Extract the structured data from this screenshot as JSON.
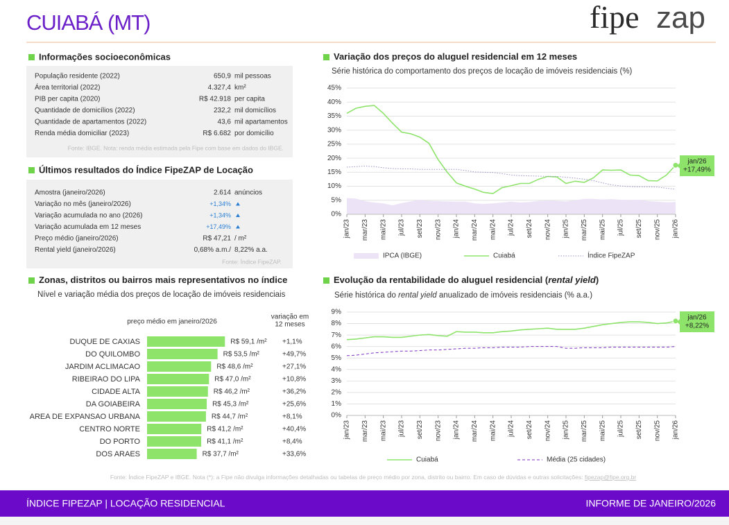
{
  "header": {
    "title": "CUIABÁ (MT)",
    "logo": [
      "fipe",
      "zap"
    ]
  },
  "socioeconomic": {
    "title": "Informações socioeconômicas",
    "rows": [
      [
        "População residente (2022)",
        "650,9",
        "mil pessoas"
      ],
      [
        "Área territorial (2022)",
        "4.327,4",
        "km²"
      ],
      [
        "PIB per capita (2020)",
        "R$ 42.918",
        "per capita"
      ],
      [
        "Quantidade de domicílios (2022)",
        "232,2",
        "mil domicílios"
      ],
      [
        "Quantidade de apartamentos (2022)",
        "43,6",
        "mil apartamentos"
      ],
      [
        "Renda média domiciliar (2023)",
        "R$ 6.682",
        "por domicílio"
      ]
    ],
    "source": "Fonte: IBGE. Nota: renda média estimada pela Fipe com base em dados do IBGE."
  },
  "index_results": {
    "title": "Últimos resultados do Índice FipeZAP de Locação",
    "rows": [
      [
        "Amostra (janeiro/2026)",
        "2.614",
        "anúncios"
      ],
      [
        "Variação no mês (janeiro/2026)",
        "+1,34%",
        ""
      ],
      [
        "Variação acumulada no ano (2026)",
        "+1,34%",
        ""
      ],
      [
        "Variação acumulada em 12 meses",
        "+17,49%",
        ""
      ],
      [
        "Preço médio (janeiro/2026)",
        "R$ 47,21",
        "/ m²"
      ],
      [
        "Rental yield (janeiro/2026)",
        "0,68% a.m./",
        "8,22% a.a."
      ]
    ],
    "source": "Fonte: Índice FipeZAP."
  },
  "chart_data": [
    {
      "type": "line",
      "title": [
        "Variação dos preços do aluguel residencial em 12 meses"
      ],
      "subtitle": [
        "Série histórica do comportamento dos preços de locação de imóveis residenciais (%)"
      ],
      "categories": [
        "jan/23",
        null,
        "mar/23",
        null,
        "mai/23",
        null,
        "jul/23",
        null,
        "set/23",
        null,
        "nov/23",
        null,
        "jan/24",
        null,
        "mar/24",
        null,
        "mai/24",
        null,
        "jul/24",
        null,
        "set/24",
        null,
        "nov/24",
        null,
        "jan/25",
        null,
        "mar/25",
        null,
        "mai/25",
        null,
        "jul/25",
        null,
        "set/25",
        null,
        "nov/25",
        null,
        "jan/26"
      ],
      "series": [
        {
          "name": "IPCA (IBGE)",
          "color": "#ece4f6",
          "kind": "area",
          "values": [
            5.8,
            5.6,
            4.7,
            4.2,
            3.9,
            3.2,
            4,
            4.6,
            5.2,
            4.8,
            4.7,
            4.6,
            4.5,
            4.5,
            3.9,
            3.7,
            3.9,
            4.2,
            4.5,
            4.2,
            4.4,
            4.8,
            4.9,
            4.8,
            4.6,
            5,
            5.5,
            5.5,
            5.3,
            5.4,
            5.2,
            5.1,
            5.2,
            4.7,
            4.5,
            4.3,
            4.4
          ]
        },
        {
          "name": "Cuiabá",
          "color": "#8ee36b",
          "kind": "line",
          "values": [
            36,
            37.8,
            38.5,
            38.8,
            36,
            32.5,
            29.3,
            28.7,
            27.5,
            25.3,
            19.5,
            15,
            11.2,
            10,
            9,
            7.8,
            7.4,
            9.5,
            10.2,
            11,
            11,
            12.5,
            13.5,
            13.3,
            11,
            11.8,
            11.4,
            13,
            15.8,
            15.7,
            15.8,
            14,
            13.8,
            12,
            11.9,
            14,
            17.49
          ]
        },
        {
          "name": "Índice FipeZAP",
          "color": "#9a92c4",
          "kind": "line",
          "dash": "dotted",
          "values": [
            16.8,
            17,
            17.2,
            17,
            16.6,
            16.3,
            16.2,
            16.2,
            16,
            16,
            16,
            16,
            16,
            15.6,
            15.1,
            15,
            14.9,
            14.5,
            14,
            13.8,
            13.7,
            13.6,
            13.5,
            13.5,
            13.2,
            12.9,
            12.5,
            12,
            11.2,
            10.5,
            10.1,
            9.9,
            9.8,
            9.8,
            9.7,
            9.3,
            9
          ]
        }
      ],
      "ylim": [
        0,
        45
      ],
      "yticks": [
        {
          "value": 0,
          "label": "0%"
        },
        {
          "value": 5,
          "label": "5%"
        },
        {
          "value": 10,
          "label": "10%"
        },
        {
          "value": 15,
          "label": "15%"
        },
        {
          "value": 20,
          "label": "20%"
        },
        {
          "value": 25,
          "label": "25%"
        },
        {
          "value": 30,
          "label": "30%"
        },
        {
          "value": 35,
          "label": "35%"
        },
        {
          "value": 40,
          "label": "40%"
        },
        {
          "value": 45,
          "label": "45%"
        }
      ],
      "grid": true,
      "annotation": [
        "jan/26",
        "+17,49%"
      ]
    },
    {
      "type": "line",
      "title": [
        "Evolução da rentabilidade do aluguel residencial (",
        "rental yield",
        ")"
      ],
      "subtitle": [
        "Série histórica do ",
        "rental yield",
        " anualizado de imóveis residenciais (% a.a.)"
      ],
      "categories": [
        "jan/23",
        null,
        "mar/23",
        null,
        "mai/23",
        null,
        "jul/23",
        null,
        "set/23",
        null,
        "nov/23",
        null,
        "jan/24",
        null,
        "mar/24",
        null,
        "mai/24",
        null,
        "jul/24",
        null,
        "set/24",
        null,
        "nov/24",
        null,
        "jan/25",
        null,
        "mar/25",
        null,
        "mai/25",
        null,
        "jul/25",
        null,
        "set/25",
        null,
        "nov/25",
        null,
        "jan/26"
      ],
      "series": [
        {
          "name": "Cuiabá",
          "color": "#8ee36b",
          "kind": "line",
          "values": [
            6.6,
            6.65,
            6.75,
            6.85,
            6.85,
            6.8,
            6.8,
            6.9,
            7,
            7.05,
            6.95,
            6.9,
            7.3,
            7.25,
            7.25,
            7.2,
            7.2,
            7.3,
            7.35,
            7.45,
            7.5,
            7.55,
            7.6,
            7.5,
            7.5,
            7.5,
            7.6,
            7.75,
            7.9,
            8,
            8.1,
            8.15,
            8.15,
            8.1,
            8,
            8.05,
            8.22
          ]
        },
        {
          "name": "Média (25 cidades)",
          "color": "#7b2fbf",
          "kind": "line",
          "dash": "dashed",
          "values": [
            5.2,
            5.25,
            5.35,
            5.45,
            5.5,
            5.55,
            5.6,
            5.6,
            5.65,
            5.7,
            5.7,
            5.75,
            5.8,
            5.85,
            5.85,
            5.9,
            5.9,
            5.95,
            5.95,
            5.95,
            6,
            6,
            6,
            6,
            5.85,
            5.85,
            5.9,
            5.9,
            5.9,
            5.95,
            5.95,
            5.95,
            5.95,
            5.95,
            5.95,
            5.95,
            6
          ]
        }
      ],
      "ylim": [
        0,
        9
      ],
      "yticks": [
        {
          "value": 0,
          "label": "0%"
        },
        {
          "value": 1,
          "label": "1%"
        },
        {
          "value": 2,
          "label": "2%"
        },
        {
          "value": 3,
          "label": "3%"
        },
        {
          "value": 4,
          "label": "4%"
        },
        {
          "value": 5,
          "label": "5%"
        },
        {
          "value": 6,
          "label": "6%"
        },
        {
          "value": 7,
          "label": "7%"
        },
        {
          "value": 8,
          "label": "8%"
        },
        {
          "value": 9,
          "label": "9%"
        }
      ],
      "grid": true,
      "annotation": [
        "jan/26",
        "+8,22%"
      ]
    },
    {
      "type": "hbar",
      "title": [
        "Zonas, distritos ou bairros mais representativos no índice"
      ],
      "subtitle": [
        "Nível e variação média dos preços de locação de imóveis residenciais"
      ],
      "value_header": "preço médio em janeiro/2026",
      "variation_header": [
        "variação em",
        "12 meses"
      ],
      "categories": [
        "DUQUE DE CAXIAS",
        "DO QUILOMBO",
        "JARDIM ACLIMACAO",
        "RIBEIRAO DO LIPA",
        "CIDADE ALTA",
        "DA GOIABEIRA",
        "AREA DE EXPANSAO URBANA",
        "CENTRO NORTE",
        "DO PORTO",
        "DOS ARAES"
      ],
      "values": [
        59.1,
        53.5,
        48.6,
        47,
        46.2,
        45.3,
        44.7,
        41.2,
        41.1,
        37.7
      ],
      "value_labels": [
        "R$ 59,1 /m²",
        "R$ 53,5 /m²",
        "R$ 48,6 /m²",
        "R$ 47,0 /m²",
        "R$ 46,2 /m²",
        "R$ 45,3 /m²",
        "R$ 44,7 /m²",
        "R$ 41,2 /m²",
        "R$ 41,1 /m²",
        "R$ 37,7 /m²"
      ],
      "variations": [
        "+1,1%",
        "+49,7%",
        "+27,1%",
        "+10,8%",
        "+36,2%",
        "+25,6%",
        "+8,1%",
        "+40,4%",
        "+8,4%",
        "+33,6%"
      ],
      "color": "#8ee36b"
    }
  ],
  "footnote": {
    "text": "Fonte: Índice FipeZAP e IBGE. Nota (*): a Fipe não divulga informações detalhadas ou tabelas de preço médio por zona, distrito ou bairro. Em caso de dúvidas e outras solicitações: ",
    "email": "fipezap@fipe.org.br"
  },
  "footer": {
    "left": "ÍNDICE FIPEZAP | LOCAÇÃO RESIDENCIAL",
    "right": "INFORME DE JANEIRO/2026"
  }
}
